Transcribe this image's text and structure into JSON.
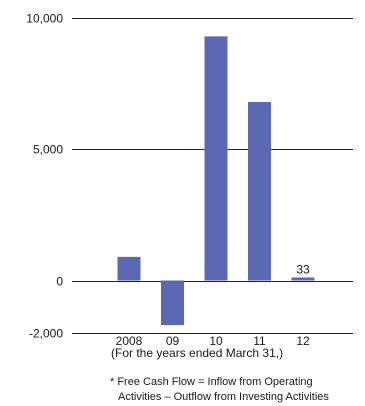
{
  "chart_data": {
    "type": "bar",
    "title": "",
    "xlabel": "",
    "ylabel": "",
    "categories": [
      "2008",
      "09",
      "10",
      "11",
      "12"
    ],
    "values": [
      900,
      -1700,
      9300,
      6800,
      33
    ],
    "data_labels": [
      {
        "category": "12",
        "text": "33"
      }
    ],
    "y_ticks": [
      {
        "value": 10000,
        "label": "10,000"
      },
      {
        "value": 5000,
        "label": "5,000"
      },
      {
        "value": 0,
        "label": "0"
      },
      {
        "value": -2000,
        "label": "-2,000"
      }
    ],
    "ylim": [
      -2000,
      10000
    ],
    "grid": true,
    "legend": "none",
    "bar_color": "#5b68b4"
  },
  "notes": {
    "period": "(For the years ended March 31,)",
    "footnote_line1": "* Free Cash Flow = Inflow from Operating",
    "footnote_line2": "Activities – Outflow from Investing Activities"
  }
}
